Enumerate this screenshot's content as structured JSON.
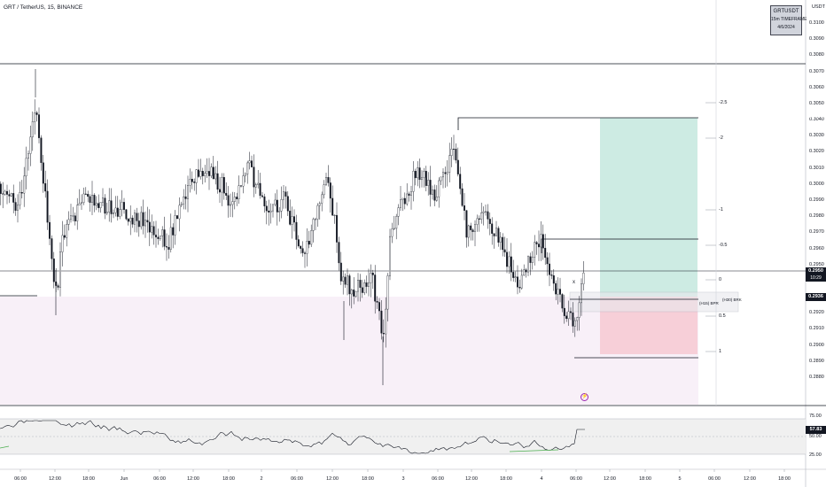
{
  "header": {
    "symbol_title": "GRT / TetherUS, 15, BINANCE",
    "currency": "USDT"
  },
  "info_box": {
    "symbol": "GRTUSDT",
    "timeframe": "15m TIMEFRAME",
    "date": "4/6/2024"
  },
  "price_axis": {
    "labels": [
      "0.3100",
      "0.3090",
      "0.3080",
      "0.3070",
      "0.3060",
      "0.3050",
      "0.3040",
      "0.3030",
      "0.3020",
      "0.3010",
      "0.3000",
      "0.2990",
      "0.2980",
      "0.2970",
      "0.2960",
      "0.2950",
      "0.2940",
      "0.2930",
      "0.2920",
      "0.2910",
      "0.2900",
      "0.2890",
      "0.2880"
    ],
    "target_price": {
      "value": "0.3036",
      "color": "#089981"
    },
    "current_price": {
      "value": "0.2950",
      "countdown": "10:29",
      "color": "#131722"
    },
    "entry_price": {
      "value": "0.2936",
      "color": "#131722"
    },
    "stop_price": {
      "value": "0.2904",
      "color": "#f23645"
    }
  },
  "fib_levels": [
    "-2.5",
    "-2",
    "-1",
    "-0.5",
    "0",
    "0.5",
    "1"
  ],
  "annotations": {
    "bpr_label": "(H15) BPR",
    "brk_label": "(H30) BRK",
    "x_mark": "x"
  },
  "rsi": {
    "value": "57.83",
    "levels": [
      "75.00",
      "50.00",
      "25.00"
    ]
  },
  "time_axis": [
    "06:00",
    "12:00",
    "18:00",
    "Jun",
    "06:00",
    "12:00",
    "18:00",
    "2",
    "06:00",
    "12:00",
    "18:00",
    "3",
    "06:00",
    "12:00",
    "18:00",
    "4",
    "06:00",
    "12:00",
    "18:00",
    "5",
    "06:00",
    "12:00",
    "18:00"
  ],
  "colors": {
    "up_candle": "#ffffff",
    "down_candle": "#131722",
    "target_zone": "#cdebe3",
    "stop_zone": "#f7cfd8",
    "pink_zone": "#f8f0f8",
    "rsi_band": "#f0f0f0"
  }
}
